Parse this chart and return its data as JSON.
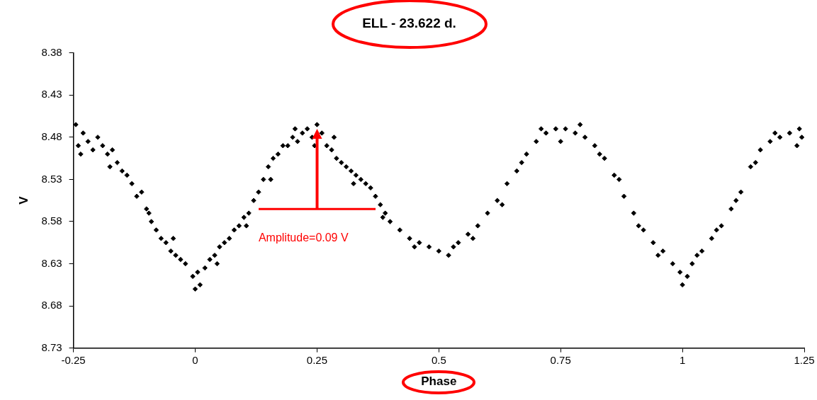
{
  "chart_data": {
    "type": "scatter",
    "title": "ELL - 23.622 d.",
    "xlabel": "Phase",
    "ylabel": "V",
    "color": "#000000",
    "marker": "diamond",
    "grid": false,
    "xlim": [
      -0.25,
      1.25
    ],
    "xticks": [
      -0.25,
      0,
      0.25,
      0.5,
      0.75,
      1,
      1.25
    ],
    "ylim": [
      8.73,
      8.38
    ],
    "yticks": [
      8.38,
      8.43,
      8.48,
      8.53,
      8.58,
      8.63,
      8.68,
      8.73
    ],
    "annotations": [
      "Amplitude=0.09 V"
    ],
    "x": [
      -0.245,
      -0.24,
      -0.23,
      -0.22,
      -0.21,
      -0.2,
      -0.19,
      -0.18,
      -0.17,
      -0.16,
      -0.15,
      -0.14,
      -0.13,
      -0.12,
      -0.11,
      -0.1,
      -0.09,
      -0.08,
      -0.07,
      -0.06,
      -0.05,
      -0.04,
      -0.03,
      -0.02,
      -0.005,
      0,
      0.01,
      0.02,
      0.03,
      0.04,
      0.05,
      0.06,
      0.07,
      0.08,
      0.09,
      0.1,
      0.11,
      0.12,
      0.13,
      0.14,
      0.15,
      0.16,
      0.17,
      0.18,
      0.19,
      0.2,
      0.21,
      0.22,
      0.23,
      0.24,
      0.25,
      0.26,
      0.27,
      0.28,
      0.29,
      0.3,
      0.31,
      0.32,
      0.33,
      0.34,
      0.35,
      0.36,
      0.37,
      0.38,
      0.39,
      0.4,
      0.42,
      0.44,
      0.46,
      0.48,
      0.5,
      0.52,
      0.54,
      0.56,
      0.58,
      0.6,
      0.62,
      0.64,
      0.66,
      0.68,
      0.7,
      0.72,
      0.74,
      0.76,
      0.78,
      0.8,
      0.82,
      0.84,
      0.86,
      0.88,
      0.9,
      0.92,
      0.94,
      0.96,
      0.98,
      1.0,
      1.01,
      1.02,
      1.04,
      1.06,
      1.08,
      1.1,
      1.12,
      1.14,
      1.16,
      1.18,
      1.2,
      1.22,
      1.24,
      1.245,
      -0.235,
      -0.175,
      -0.095,
      -0.045,
      0.005,
      0.045,
      0.105,
      0.155,
      0.205,
      0.245,
      0.285,
      0.325,
      0.385,
      0.45,
      0.53,
      0.57,
      0.63,
      0.67,
      0.71,
      0.75,
      0.79,
      0.83,
      0.87,
      0.91,
      0.95,
      0.995,
      1.03,
      1.07,
      1.11,
      1.15,
      1.19,
      1.235
    ],
    "values": [
      8.465,
      8.49,
      8.475,
      8.485,
      8.495,
      8.48,
      8.49,
      8.5,
      8.495,
      8.51,
      8.52,
      8.525,
      8.535,
      8.55,
      8.545,
      8.565,
      8.58,
      8.59,
      8.6,
      8.605,
      8.615,
      8.62,
      8.625,
      8.63,
      8.645,
      8.66,
      8.655,
      8.635,
      8.625,
      8.62,
      8.61,
      8.605,
      8.6,
      8.59,
      8.585,
      8.575,
      8.57,
      8.555,
      8.545,
      8.53,
      8.515,
      8.505,
      8.5,
      8.49,
      8.49,
      8.48,
      8.485,
      8.475,
      8.47,
      8.48,
      8.465,
      8.475,
      8.49,
      8.495,
      8.505,
      8.51,
      8.515,
      8.52,
      8.525,
      8.53,
      8.535,
      8.54,
      8.55,
      8.56,
      8.57,
      8.58,
      8.59,
      8.6,
      8.605,
      8.61,
      8.615,
      8.62,
      8.605,
      8.595,
      8.585,
      8.57,
      8.555,
      8.535,
      8.52,
      8.5,
      8.485,
      8.475,
      8.47,
      8.47,
      8.475,
      8.48,
      8.49,
      8.505,
      8.525,
      8.55,
      8.57,
      8.59,
      8.605,
      8.615,
      8.63,
      8.655,
      8.645,
      8.63,
      8.615,
      8.6,
      8.585,
      8.565,
      8.545,
      8.515,
      8.495,
      8.485,
      8.48,
      8.475,
      8.47,
      8.48,
      8.5,
      8.515,
      8.57,
      8.6,
      8.64,
      8.63,
      8.585,
      8.53,
      8.47,
      8.49,
      8.48,
      8.535,
      8.575,
      8.61,
      8.61,
      8.6,
      8.56,
      8.51,
      8.47,
      8.485,
      8.465,
      8.5,
      8.53,
      8.585,
      8.62,
      8.64,
      8.62,
      8.59,
      8.555,
      8.51,
      8.475,
      8.49
    ]
  }
}
